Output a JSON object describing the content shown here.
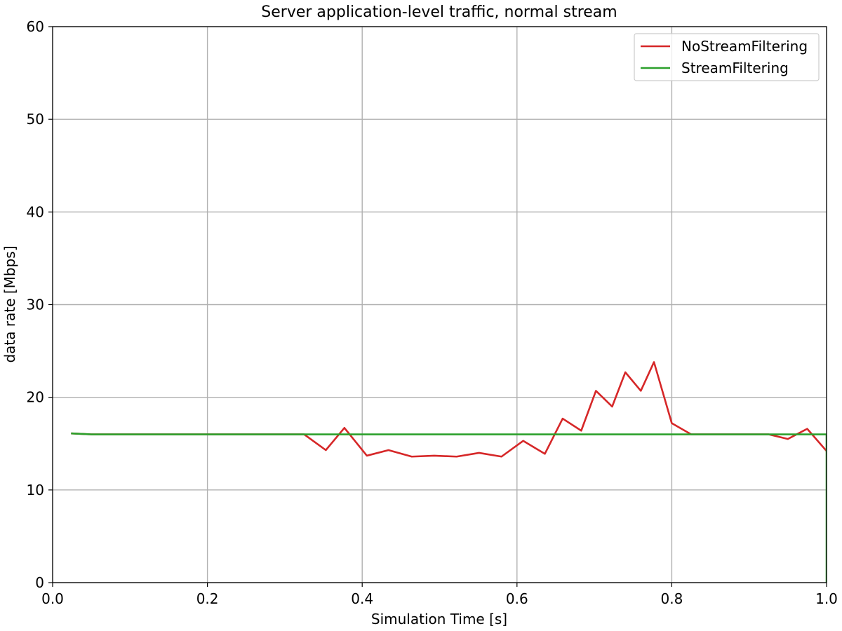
{
  "chart_data": {
    "type": "line",
    "title": "Server application-level traffic, normal stream",
    "xlabel": "Simulation Time [s]",
    "ylabel": "data rate [Mbps]",
    "xlim": [
      0.0,
      1.0
    ],
    "ylim": [
      0,
      60
    ],
    "xticks": [
      0.0,
      0.2,
      0.4,
      0.6,
      0.8,
      1.0
    ],
    "xtick_labels": [
      "0.0",
      "0.2",
      "0.4",
      "0.6",
      "0.8",
      "1.0"
    ],
    "yticks": [
      0,
      10,
      20,
      30,
      40,
      50,
      60
    ],
    "ytick_labels": [
      "0",
      "10",
      "20",
      "30",
      "40",
      "50",
      "60"
    ],
    "grid": true,
    "legend_position": "top-right",
    "series": [
      {
        "name": "NoStreamFiltering",
        "color": "#d62728",
        "x": [
          0.025,
          0.05,
          0.1,
          0.15,
          0.2,
          0.25,
          0.3,
          0.325,
          0.353,
          0.377,
          0.406,
          0.434,
          0.464,
          0.493,
          0.522,
          0.551,
          0.58,
          0.608,
          0.636,
          0.659,
          0.683,
          0.702,
          0.723,
          0.74,
          0.76,
          0.777,
          0.8,
          0.825,
          0.85,
          0.9,
          0.925,
          0.95,
          0.975,
          1.0
        ],
        "y": [
          16.1,
          16.0,
          16.0,
          16.0,
          16.0,
          16.0,
          16.0,
          16.0,
          14.3,
          16.7,
          13.7,
          14.3,
          13.6,
          13.7,
          13.6,
          14.0,
          13.6,
          15.3,
          13.9,
          17.7,
          16.4,
          20.7,
          19.0,
          22.7,
          20.7,
          23.8,
          17.2,
          16.0,
          16.0,
          16.0,
          16.0,
          15.5,
          16.6,
          14.2
        ]
      },
      {
        "name": "StreamFiltering",
        "color": "#2ca02c",
        "x": [
          0.025,
          0.05,
          0.1,
          0.2,
          0.3,
          0.4,
          0.5,
          0.6,
          0.7,
          0.8,
          0.9,
          1.0,
          1.0
        ],
        "y": [
          16.1,
          16.0,
          16.0,
          16.0,
          16.0,
          16.0,
          16.0,
          16.0,
          16.0,
          16.0,
          16.0,
          16.0,
          0.0
        ]
      }
    ]
  }
}
